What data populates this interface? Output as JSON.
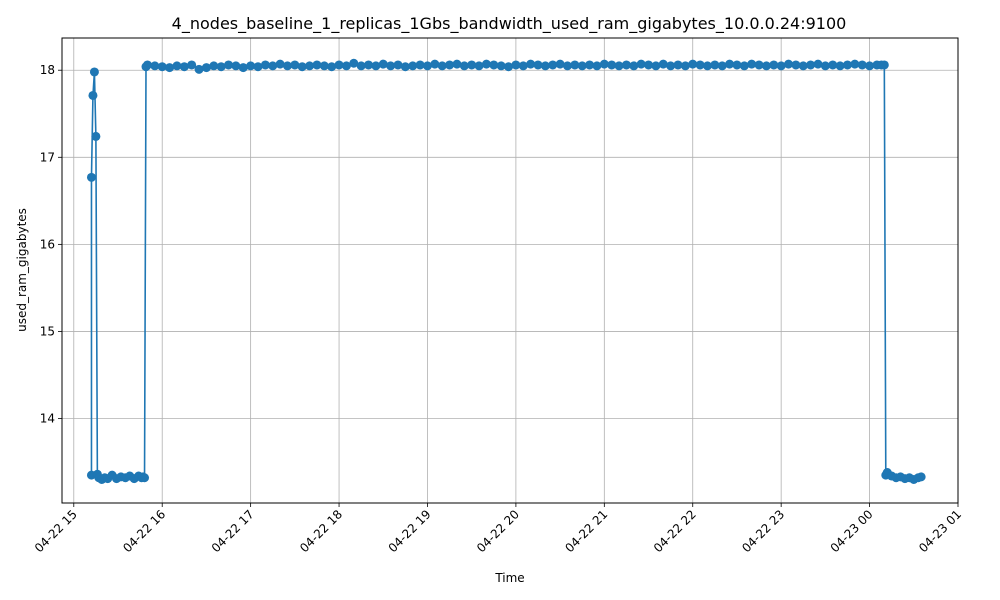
{
  "chart_data": {
    "type": "line",
    "title": "4_nodes_baseline_1_replicas_1Gbs_bandwidth_used_ram_gigabytes_10.0.0.24:9100",
    "xlabel": "Time",
    "ylabel": "used_ram_gigabytes",
    "xlim": [
      "2024-04-22 14:52",
      "2024-04-23 01:00"
    ],
    "ylim": [
      13.03,
      18.37
    ],
    "x_ticks": [
      {
        "t": "2024-04-22 15:00",
        "label": "04-22 15"
      },
      {
        "t": "2024-04-22 16:00",
        "label": "04-22 16"
      },
      {
        "t": "2024-04-22 17:00",
        "label": "04-22 17"
      },
      {
        "t": "2024-04-22 18:00",
        "label": "04-22 18"
      },
      {
        "t": "2024-04-22 19:00",
        "label": "04-22 19"
      },
      {
        "t": "2024-04-22 20:00",
        "label": "04-22 20"
      },
      {
        "t": "2024-04-22 21:00",
        "label": "04-22 21"
      },
      {
        "t": "2024-04-22 22:00",
        "label": "04-22 22"
      },
      {
        "t": "2024-04-22 23:00",
        "label": "04-22 23"
      },
      {
        "t": "2024-04-23 00:00",
        "label": "04-23 00"
      },
      {
        "t": "2024-04-23 01:00",
        "label": "04-23 01"
      }
    ],
    "y_ticks": [
      14,
      15,
      16,
      17,
      18
    ],
    "grid": true,
    "series_color": "#1f77b4",
    "x": [
      "2024-04-22 15:12",
      "2024-04-22 15:12",
      "2024-04-22 15:13",
      "2024-04-22 15:14",
      "2024-04-22 15:15",
      "2024-04-22 15:16",
      "2024-04-22 15:17",
      "2024-04-22 15:19",
      "2024-04-22 15:21",
      "2024-04-22 15:23",
      "2024-04-22 15:26",
      "2024-04-22 15:29",
      "2024-04-22 15:32",
      "2024-04-22 15:35",
      "2024-04-22 15:38",
      "2024-04-22 15:41",
      "2024-04-22 15:44",
      "2024-04-22 15:46",
      "2024-04-22 15:47",
      "2024-04-22 15:48",
      "2024-04-22 15:49",
      "2024-04-22 15:50",
      "2024-04-22 15:55",
      "2024-04-22 16:00",
      "2024-04-22 16:05",
      "2024-04-22 16:10",
      "2024-04-22 16:15",
      "2024-04-22 16:20",
      "2024-04-22 16:25",
      "2024-04-22 16:30",
      "2024-04-22 16:35",
      "2024-04-22 16:40",
      "2024-04-22 16:45",
      "2024-04-22 16:50",
      "2024-04-22 16:55",
      "2024-04-22 17:00",
      "2024-04-22 17:05",
      "2024-04-22 17:10",
      "2024-04-22 17:15",
      "2024-04-22 17:20",
      "2024-04-22 17:25",
      "2024-04-22 17:30",
      "2024-04-22 17:35",
      "2024-04-22 17:40",
      "2024-04-22 17:45",
      "2024-04-22 17:50",
      "2024-04-22 17:55",
      "2024-04-22 18:00",
      "2024-04-22 18:05",
      "2024-04-22 18:10",
      "2024-04-22 18:15",
      "2024-04-22 18:20",
      "2024-04-22 18:25",
      "2024-04-22 18:30",
      "2024-04-22 18:35",
      "2024-04-22 18:40",
      "2024-04-22 18:45",
      "2024-04-22 18:50",
      "2024-04-22 18:55",
      "2024-04-22 19:00",
      "2024-04-22 19:05",
      "2024-04-22 19:10",
      "2024-04-22 19:15",
      "2024-04-22 19:20",
      "2024-04-22 19:25",
      "2024-04-22 19:30",
      "2024-04-22 19:35",
      "2024-04-22 19:40",
      "2024-04-22 19:45",
      "2024-04-22 19:50",
      "2024-04-22 19:55",
      "2024-04-22 20:00",
      "2024-04-22 20:05",
      "2024-04-22 20:10",
      "2024-04-22 20:15",
      "2024-04-22 20:20",
      "2024-04-22 20:25",
      "2024-04-22 20:30",
      "2024-04-22 20:35",
      "2024-04-22 20:40",
      "2024-04-22 20:45",
      "2024-04-22 20:50",
      "2024-04-22 20:55",
      "2024-04-22 21:00",
      "2024-04-22 21:05",
      "2024-04-22 21:10",
      "2024-04-22 21:15",
      "2024-04-22 21:20",
      "2024-04-22 21:25",
      "2024-04-22 21:30",
      "2024-04-22 21:35",
      "2024-04-22 21:40",
      "2024-04-22 21:45",
      "2024-04-22 21:50",
      "2024-04-22 21:55",
      "2024-04-22 22:00",
      "2024-04-22 22:05",
      "2024-04-22 22:10",
      "2024-04-22 22:15",
      "2024-04-22 22:20",
      "2024-04-22 22:25",
      "2024-04-22 22:30",
      "2024-04-22 22:35",
      "2024-04-22 22:40",
      "2024-04-22 22:45",
      "2024-04-22 22:50",
      "2024-04-22 22:55",
      "2024-04-22 23:00",
      "2024-04-22 23:05",
      "2024-04-22 23:10",
      "2024-04-22 23:15",
      "2024-04-22 23:20",
      "2024-04-22 23:25",
      "2024-04-22 23:30",
      "2024-04-22 23:35",
      "2024-04-22 23:40",
      "2024-04-22 23:45",
      "2024-04-22 23:50",
      "2024-04-22 23:55",
      "2024-04-23 00:00",
      "2024-04-23 00:05",
      "2024-04-23 00:08",
      "2024-04-23 00:10",
      "2024-04-23 00:11",
      "2024-04-23 00:12",
      "2024-04-23 00:15",
      "2024-04-23 00:18",
      "2024-04-23 00:21",
      "2024-04-23 00:24",
      "2024-04-23 00:27",
      "2024-04-23 00:30",
      "2024-04-23 00:33",
      "2024-04-23 00:35"
    ],
    "values": [
      13.35,
      16.77,
      17.71,
      17.98,
      17.24,
      13.36,
      13.32,
      13.3,
      13.32,
      13.31,
      13.35,
      13.31,
      13.33,
      13.32,
      13.34,
      13.31,
      13.34,
      13.32,
      13.33,
      13.32,
      18.04,
      18.06,
      18.05,
      18.04,
      18.03,
      18.05,
      18.04,
      18.06,
      18.01,
      18.03,
      18.05,
      18.04,
      18.06,
      18.05,
      18.03,
      18.05,
      18.04,
      18.06,
      18.05,
      18.07,
      18.05,
      18.06,
      18.04,
      18.05,
      18.06,
      18.05,
      18.04,
      18.06,
      18.05,
      18.08,
      18.05,
      18.06,
      18.05,
      18.07,
      18.05,
      18.06,
      18.04,
      18.05,
      18.06,
      18.05,
      18.07,
      18.05,
      18.06,
      18.07,
      18.05,
      18.06,
      18.05,
      18.07,
      18.06,
      18.05,
      18.04,
      18.06,
      18.05,
      18.07,
      18.06,
      18.05,
      18.06,
      18.07,
      18.05,
      18.06,
      18.05,
      18.06,
      18.05,
      18.07,
      18.06,
      18.05,
      18.06,
      18.05,
      18.07,
      18.06,
      18.05,
      18.07,
      18.05,
      18.06,
      18.05,
      18.07,
      18.06,
      18.05,
      18.06,
      18.05,
      18.07,
      18.06,
      18.05,
      18.07,
      18.06,
      18.05,
      18.06,
      18.05,
      18.07,
      18.06,
      18.05,
      18.06,
      18.07,
      18.05,
      18.06,
      18.05,
      18.06,
      18.07,
      18.06,
      18.05,
      18.06,
      18.06,
      18.06,
      13.35,
      13.38,
      13.34,
      13.32,
      13.33,
      13.31,
      13.32,
      13.3,
      13.32,
      13.33
    ]
  }
}
